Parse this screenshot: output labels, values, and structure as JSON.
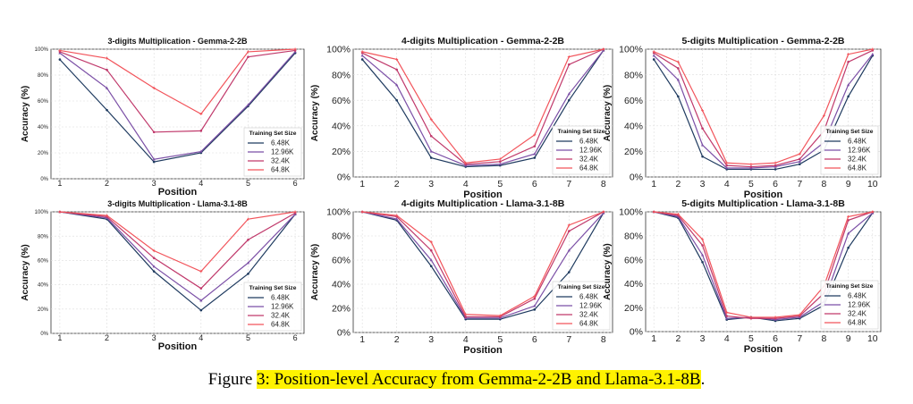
{
  "caption": {
    "prefix": "Figure ",
    "highlight": "3: Position-level Accuracy from Gemma-2-2B and Llama-3.1-8B",
    "suffix": "."
  },
  "colors": [
    "#1e3a5f",
    "#7b4fa6",
    "#c0396b",
    "#f2545b"
  ],
  "chart_data": [
    {
      "type": "line",
      "title": "3-digits Multiplication - Gemma-2-2B",
      "xlabel": "Position",
      "ylabel": "Accuracy (%)",
      "x": [
        1,
        2,
        3,
        4,
        5,
        6
      ],
      "yticks": [
        "0%",
        "20%",
        "40%",
        "60%",
        "80%",
        "100%"
      ],
      "ylim": [
        0,
        100
      ],
      "grid": true,
      "tick_size": "small",
      "legend": {
        "title": "Training Set Size",
        "placement": "lower-right"
      },
      "series": [
        {
          "name": "6.48K",
          "values": [
            92,
            53,
            13,
            20,
            56,
            97
          ]
        },
        {
          "name": "12.96K",
          "values": [
            97,
            70,
            15,
            21,
            57,
            98
          ]
        },
        {
          "name": "32.4K",
          "values": [
            98,
            84,
            36,
            37,
            94,
            99
          ]
        },
        {
          "name": "64.8K",
          "values": [
            99,
            93,
            70,
            50,
            98,
            100
          ]
        }
      ]
    },
    {
      "type": "line",
      "title": "4-digits Multiplication - Gemma-2-2B",
      "xlabel": "Position",
      "ylabel": "Accuracy (%)",
      "x": [
        1,
        2,
        3,
        4,
        5,
        6,
        7,
        8
      ],
      "yticks": [
        "0%",
        "20%",
        "40%",
        "60%",
        "80%",
        "100%"
      ],
      "ylim": [
        0,
        100
      ],
      "grid": true,
      "tick_size": "large",
      "legend": {
        "title": "Training Set Size",
        "placement": "lower-right"
      },
      "series": [
        {
          "name": "6.48K",
          "values": [
            92,
            60,
            15,
            8,
            9,
            15,
            60,
            99
          ]
        },
        {
          "name": "12.96K",
          "values": [
            95,
            72,
            20,
            9,
            10,
            18,
            65,
            99
          ]
        },
        {
          "name": "32.4K",
          "values": [
            97,
            84,
            32,
            10,
            12,
            24,
            88,
            100
          ]
        },
        {
          "name": "64.8K",
          "values": [
            98,
            92,
            45,
            11,
            14,
            33,
            94,
            100
          ]
        }
      ]
    },
    {
      "type": "line",
      "title": "5-digits Multiplication - Gemma-2-2B",
      "xlabel": "Position",
      "ylabel": "Accuracy (%)",
      "x": [
        1,
        2,
        3,
        4,
        5,
        6,
        7,
        8,
        9,
        10
      ],
      "yticks": [
        "0%",
        "20%",
        "40%",
        "60%",
        "80%",
        "100%"
      ],
      "ylim": [
        0,
        100
      ],
      "grid": true,
      "tick_size": "large",
      "legend": {
        "title": "Training Set Size",
        "placement": "lower-right"
      },
      "series": [
        {
          "name": "6.48K",
          "values": [
            92,
            63,
            16,
            6,
            6,
            6,
            10,
            21,
            63,
            95
          ]
        },
        {
          "name": "12.96K",
          "values": [
            95,
            76,
            25,
            7,
            7,
            8,
            12,
            27,
            72,
            96
          ]
        },
        {
          "name": "32.4K",
          "values": [
            97,
            85,
            38,
            9,
            8,
            9,
            14,
            36,
            90,
            99
          ]
        },
        {
          "name": "64.8K",
          "values": [
            98,
            90,
            52,
            11,
            10,
            11,
            18,
            48,
            96,
            100
          ]
        }
      ]
    },
    {
      "type": "line",
      "title": "3-digits Multiplication - Llama-3.1-8B",
      "xlabel": "Position",
      "ylabel": "Accuracy (%)",
      "x": [
        1,
        2,
        3,
        4,
        5,
        6
      ],
      "yticks": [
        "0%",
        "20%",
        "40%",
        "60%",
        "80%",
        "100%"
      ],
      "ylim": [
        0,
        100
      ],
      "grid": true,
      "tick_size": "small",
      "legend": {
        "title": "Training Set Size",
        "placement": "lower-right"
      },
      "series": [
        {
          "name": "6.48K",
          "values": [
            100,
            94,
            51,
            19,
            49,
            98
          ]
        },
        {
          "name": "12.96K",
          "values": [
            100,
            95,
            55,
            27,
            58,
            98
          ]
        },
        {
          "name": "32.4K",
          "values": [
            100,
            96,
            62,
            37,
            77,
            99
          ]
        },
        {
          "name": "64.8K",
          "values": [
            100,
            97,
            68,
            51,
            94,
            100
          ]
        }
      ]
    },
    {
      "type": "line",
      "title": "4-digits Multiplication - Llama-3.1-8B",
      "xlabel": "Position",
      "ylabel": "Accuracy (%)",
      "x": [
        1,
        2,
        3,
        4,
        5,
        6,
        7,
        8
      ],
      "yticks": [
        "0%",
        "20%",
        "40%",
        "60%",
        "80%",
        "100%"
      ],
      "ylim": [
        0,
        100
      ],
      "grid": true,
      "tick_size": "large",
      "legend": {
        "title": "Training Set Size",
        "placement": "lower-right"
      },
      "series": [
        {
          "name": "6.48K",
          "values": [
            100,
            93,
            55,
            11,
            11,
            19,
            50,
            99
          ]
        },
        {
          "name": "12.96K",
          "values": [
            100,
            94,
            60,
            12,
            12,
            22,
            68,
            99
          ]
        },
        {
          "name": "32.4K",
          "values": [
            100,
            96,
            68,
            13,
            13,
            28,
            84,
            100
          ]
        },
        {
          "name": "64.8K",
          "values": [
            100,
            97,
            75,
            15,
            14,
            30,
            89,
            100
          ]
        }
      ]
    },
    {
      "type": "line",
      "title": "5-digits Multiplication - Llama-3.1-8B",
      "xlabel": "Position",
      "ylabel": "Accuracy (%)",
      "x": [
        1,
        2,
        3,
        4,
        5,
        6,
        7,
        8,
        9,
        10
      ],
      "yticks": [
        "0%",
        "20%",
        "40%",
        "60%",
        "80%",
        "100%"
      ],
      "ylim": [
        0,
        100
      ],
      "grid": true,
      "tick_size": "large",
      "legend": {
        "title": "Training Set Size",
        "placement": "lower-right"
      },
      "series": [
        {
          "name": "6.48K",
          "values": [
            100,
            95,
            58,
            10,
            12,
            9,
            11,
            22,
            70,
            99
          ]
        },
        {
          "name": "12.96K",
          "values": [
            100,
            96,
            64,
            11,
            12,
            10,
            12,
            25,
            82,
            99
          ]
        },
        {
          "name": "32.4K",
          "values": [
            100,
            97,
            72,
            13,
            11,
            11,
            13,
            32,
            93,
            100
          ]
        },
        {
          "name": "64.8K",
          "values": [
            100,
            98,
            77,
            16,
            12,
            12,
            14,
            38,
            96,
            100
          ]
        }
      ]
    }
  ]
}
